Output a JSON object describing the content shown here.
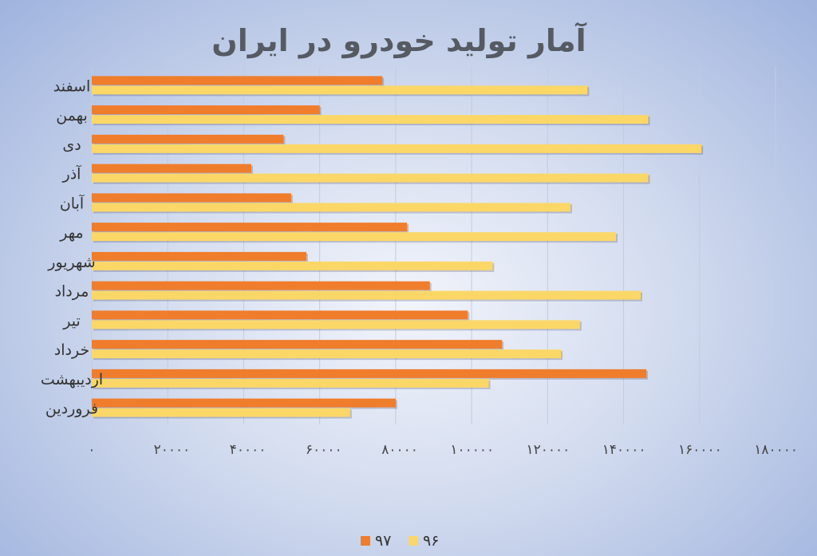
{
  "chart_data": {
    "type": "bar",
    "orientation": "horizontal",
    "title": "آمار تولید خودرو در ایران",
    "categories": [
      "فروردین",
      "اردیبهشت",
      "خرداد",
      "تیر",
      "مرداد",
      "شهریور",
      "مهر",
      "آبان",
      "آذر",
      "دی",
      "بهمن",
      "اسفند"
    ],
    "series": [
      {
        "name": "۹۷",
        "color": "#f07d2c",
        "values": [
          80000,
          146000,
          108000,
          99000,
          89000,
          56500,
          83000,
          52500,
          42000,
          50500,
          60000,
          76500
        ]
      },
      {
        "name": "۹۶",
        "color": "#fbd768",
        "values": [
          68000,
          104500,
          123500,
          128500,
          144500,
          105500,
          138000,
          126000,
          146500,
          160500,
          146500,
          130500
        ]
      }
    ],
    "x_ticks": [
      "۰",
      "۲۰۰۰۰",
      "۴۰۰۰۰",
      "۶۰۰۰۰",
      "۸۰۰۰۰",
      "۱۰۰۰۰۰",
      "۱۲۰۰۰۰",
      "۱۴۰۰۰۰",
      "۱۶۰۰۰۰",
      "۱۸۰۰۰۰"
    ],
    "xlim": [
      0,
      180000
    ],
    "grid": true,
    "legend_position": "bottom"
  }
}
